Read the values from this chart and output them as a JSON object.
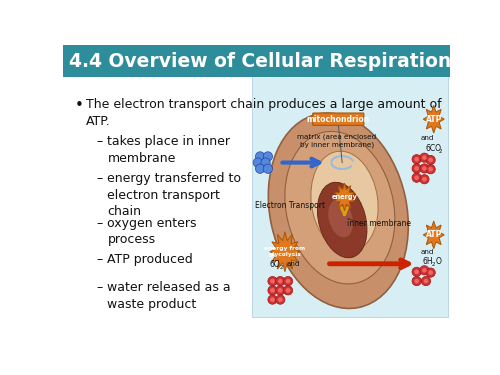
{
  "title": "4.4 Overview of Cellular Respiration",
  "title_color": "#FFFFFF",
  "title_bg_top": "#4AACB8",
  "title_bg_bot": "#2A7A88",
  "slide_bg_color": "#FFFFFF",
  "bullet_main": "The electron transport chain produces a large amount of ATP.",
  "sub_bullets": [
    "takes place in inner\nmembrane",
    "energy transferred to\nelectron transport\nchain",
    "oxygen enters\nprocess",
    "ATP produced",
    "water released as a\nwaste product"
  ],
  "text_color": "#111111",
  "diag_bg": "#D8EEF5",
  "outer_mito": "#C8906A",
  "inner_mito": "#D4A07A",
  "matrix_color": "#E0B88A",
  "cristae_color": "#8B3A2A",
  "orange_burst": "#E07820",
  "blue_dot": "#5588DD",
  "red_dot": "#CC3333",
  "blue_arrow": "#3366CC",
  "red_arrow": "#CC2200",
  "yellow_arrow": "#DAA010"
}
